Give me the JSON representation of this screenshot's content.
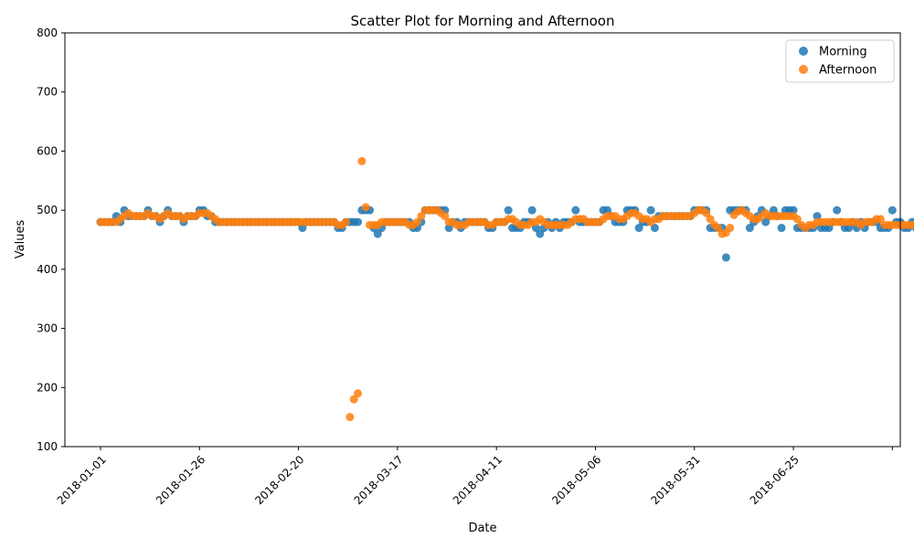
{
  "chart_data": {
    "type": "scatter",
    "title": "Scatter Plot for Morning and Afternoon",
    "xlabel": "Date",
    "ylabel": "Values",
    "xlim": [
      "2017-12-23",
      "2018-07-22"
    ],
    "ylim": [
      100,
      800
    ],
    "x_ticks": [
      "2018-01-01",
      "2018-01-26",
      "2018-02-20",
      "2018-03-17",
      "2018-04-11",
      "2018-05-06",
      "2018-05-31",
      "2018-06-25",
      "2018-07-20"
    ],
    "x_tick_labels": [
      "2018-01-01",
      "2018-01-26",
      "2018-02-20",
      "2018-03-17",
      "2018-04-11",
      "2018-05-06",
      "2018-05-31",
      "2018-06-25",
      ""
    ],
    "y_ticks": [
      100,
      200,
      300,
      400,
      500,
      600,
      700,
      800
    ],
    "y_tick_labels": [
      "100",
      "200",
      "300",
      "400",
      "500",
      "600",
      "700",
      "800"
    ],
    "grid": false,
    "legend_position": "top-right",
    "start_date": "2018-01-01",
    "series": [
      {
        "name": "Morning",
        "color": "#1f77b4",
        "values": [
          480,
          480,
          480,
          480,
          490,
          480,
          500,
          490,
          490,
          490,
          490,
          490,
          500,
          490,
          490,
          480,
          490,
          500,
          490,
          490,
          490,
          480,
          490,
          490,
          490,
          500,
          500,
          490,
          490,
          480,
          480,
          480,
          480,
          480,
          480,
          480,
          480,
          480,
          480,
          480,
          480,
          480,
          480,
          480,
          480,
          480,
          480,
          480,
          480,
          480,
          480,
          470,
          480,
          480,
          480,
          480,
          480,
          480,
          480,
          480,
          470,
          470,
          480,
          480,
          480,
          480,
          500,
          500,
          500,
          470,
          460,
          470,
          480,
          480,
          480,
          480,
          480,
          480,
          480,
          470,
          470,
          480,
          500,
          500,
          500,
          500,
          500,
          500,
          470,
          480,
          480,
          470,
          480,
          480,
          480,
          480,
          480,
          480,
          470,
          470,
          480,
          480,
          480,
          500,
          470,
          470,
          470,
          480,
          480,
          500,
          470,
          460,
          470,
          480,
          470,
          480,
          470,
          480,
          480,
          480,
          500,
          480,
          480,
          480,
          480,
          480,
          480,
          500,
          500,
          490,
          480,
          480,
          480,
          500,
          500,
          500,
          470,
          480,
          480,
          500,
          470,
          490,
          490,
          490,
          490,
          490,
          490,
          490,
          490,
          490,
          500,
          500,
          500,
          500,
          470,
          470,
          470,
          470,
          420,
          500,
          500,
          500,
          500,
          500,
          470,
          480,
          490,
          500,
          480,
          490,
          500,
          490,
          470,
          500,
          500,
          500,
          470,
          470,
          470,
          470,
          470,
          490,
          470,
          470,
          470,
          480,
          500,
          480,
          470,
          470,
          480,
          470,
          480,
          470,
          480,
          480,
          480,
          470,
          470,
          470,
          500,
          480,
          480,
          470,
          470,
          480,
          470,
          470,
          470,
          470,
          480,
          470,
          480
        ]
      },
      {
        "name": "Afternoon",
        "color": "#ff7f0e",
        "values": [
          480,
          480,
          480,
          480,
          480,
          485,
          490,
          495,
          490,
          490,
          490,
          490,
          495,
          490,
          490,
          485,
          490,
          495,
          490,
          490,
          490,
          485,
          490,
          490,
          490,
          495,
          495,
          495,
          490,
          485,
          480,
          480,
          480,
          480,
          480,
          480,
          480,
          480,
          480,
          480,
          480,
          480,
          480,
          480,
          480,
          480,
          480,
          480,
          480,
          480,
          480,
          480,
          480,
          480,
          480,
          480,
          480,
          480,
          480,
          480,
          475,
          475,
          480,
          150,
          180,
          190,
          583,
          505,
          475,
          475,
          475,
          480,
          480,
          480,
          480,
          480,
          480,
          480,
          475,
          475,
          480,
          490,
          500,
          500,
          500,
          500,
          495,
          490,
          480,
          480,
          475,
          475,
          475,
          480,
          480,
          480,
          480,
          480,
          475,
          475,
          480,
          480,
          480,
          485,
          485,
          480,
          475,
          475,
          475,
          480,
          480,
          485,
          480,
          475,
          475,
          475,
          475,
          475,
          475,
          480,
          485,
          485,
          485,
          480,
          480,
          480,
          480,
          485,
          490,
          490,
          490,
          485,
          485,
          490,
          495,
          495,
          490,
          485,
          485,
          480,
          485,
          485,
          490,
          490,
          490,
          490,
          490,
          490,
          490,
          490,
          495,
          500,
          500,
          495,
          485,
          475,
          470,
          460,
          462,
          470,
          492,
          498,
          500,
          495,
          490,
          485,
          485,
          490,
          495,
          490,
          490,
          490,
          490,
          490,
          490,
          490,
          485,
          475,
          470,
          475,
          475,
          480,
          480,
          480,
          480,
          480,
          480,
          480,
          480,
          480,
          480,
          480,
          475,
          480,
          480,
          480,
          485,
          485,
          475,
          475,
          475,
          475,
          475,
          475,
          475,
          475,
          475,
          475,
          475
        ]
      }
    ]
  }
}
